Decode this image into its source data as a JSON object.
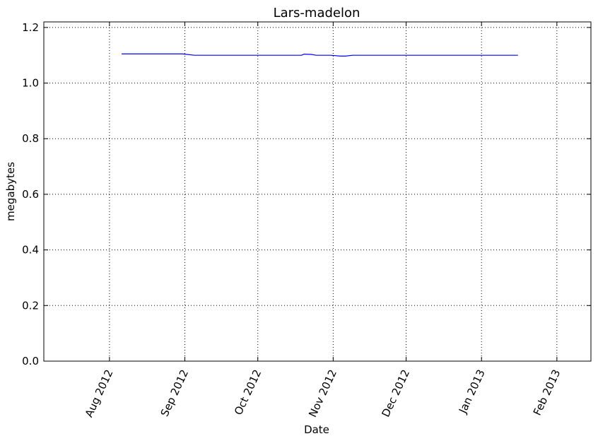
{
  "chart_data": {
    "type": "line",
    "title": "Lars-madelon",
    "xlabel": "Date",
    "ylabel": "megabytes",
    "x_scale": "date",
    "xlim": [
      "2012-07-05",
      "2013-02-15"
    ],
    "ylim": [
      0.0,
      1.22
    ],
    "grid": true,
    "x_ticks": [
      {
        "date": "2012-08-01",
        "label": "Aug 2012"
      },
      {
        "date": "2012-09-01",
        "label": "Sep 2012"
      },
      {
        "date": "2012-10-01",
        "label": "Oct 2012"
      },
      {
        "date": "2012-11-01",
        "label": "Nov 2012"
      },
      {
        "date": "2012-12-01",
        "label": "Dec 2012"
      },
      {
        "date": "2013-01-01",
        "label": "Jan 2013"
      },
      {
        "date": "2013-02-01",
        "label": "Feb 2013"
      }
    ],
    "y_ticks": [
      {
        "value": 0.0,
        "label": "0.0"
      },
      {
        "value": 0.2,
        "label": "0.2"
      },
      {
        "value": 0.4,
        "label": "0.4"
      },
      {
        "value": 0.6,
        "label": "0.6"
      },
      {
        "value": 0.8,
        "label": "0.8"
      },
      {
        "value": 1.0,
        "label": "1.0"
      },
      {
        "value": 1.2,
        "label": "1.2"
      }
    ],
    "series": [
      {
        "color": "#0000ff",
        "points": [
          {
            "x": "2012-08-06",
            "y": 1.105
          },
          {
            "x": "2012-08-31",
            "y": 1.105
          },
          {
            "x": "2012-09-05",
            "y": 1.1
          },
          {
            "x": "2012-10-19",
            "y": 1.1
          },
          {
            "x": "2012-10-20",
            "y": 1.104
          },
          {
            "x": "2012-10-23",
            "y": 1.103
          },
          {
            "x": "2012-10-25",
            "y": 1.1
          },
          {
            "x": "2012-10-31",
            "y": 1.1
          },
          {
            "x": "2012-11-04",
            "y": 1.097
          },
          {
            "x": "2012-11-06",
            "y": 1.097
          },
          {
            "x": "2012-11-09",
            "y": 1.1
          },
          {
            "x": "2013-01-16",
            "y": 1.1
          }
        ]
      }
    ]
  }
}
